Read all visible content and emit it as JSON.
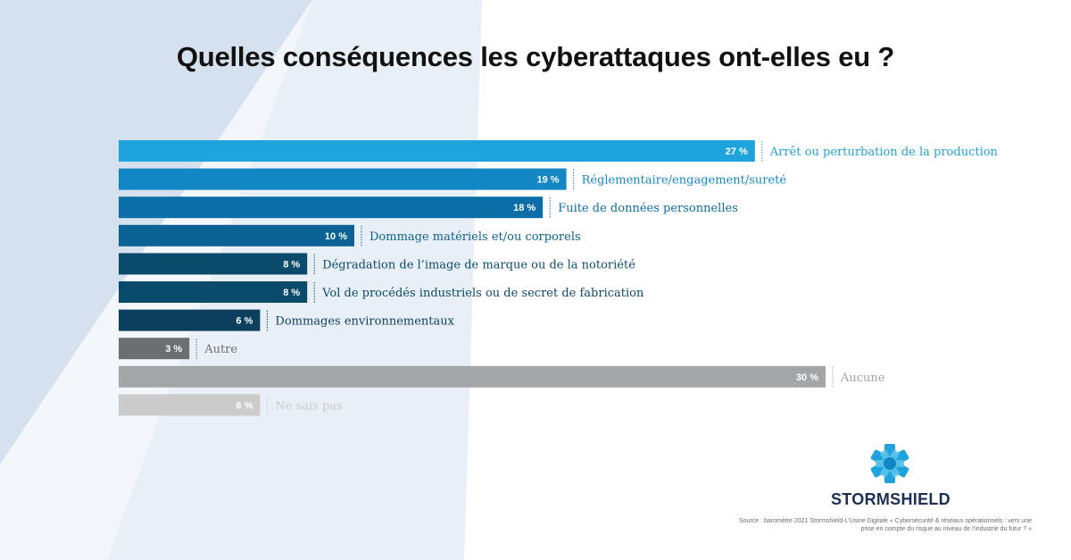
{
  "title": "Quelles conséquences les cyberattaques ont-elles eu ?",
  "chart_data": {
    "type": "bar",
    "orientation": "horizontal",
    "title": "Quelles conséquences les cyberattaques ont-elles eu ?",
    "xlabel": "",
    "ylabel": "",
    "xlim": [
      0,
      30
    ],
    "grid": false,
    "value_suffix": " %",
    "categories": [
      "Arrêt ou perturbation de la production",
      "Réglementaire/engagement/sureté",
      "Fuite de données personnelles",
      "Dommage matériels et/ou corporels",
      "Dégradation de l’image de marque ou de la notoriété",
      "Vol de procédés industriels ou de secret de fabrication",
      "Dommages environnementaux",
      "Autre",
      "Aucune",
      "Ne sais pas"
    ],
    "values": [
      27,
      19,
      18,
      10,
      8,
      8,
      6,
      3,
      30,
      6
    ],
    "bar_colors": [
      "#1ea3dc",
      "#1387c4",
      "#0c6ea6",
      "#0b6294",
      "#0a4a6b",
      "#0a4a6b",
      "#0b3f5d",
      "#6d6e70",
      "#a4a5a7",
      "#cbcbcc"
    ],
    "label_colors": [
      "#1ea3dc",
      "#1387c4",
      "#0c6ea6",
      "#0b6294",
      "#0a4a6b",
      "#0a4a6b",
      "#0b3f5d",
      "#6d6e70",
      "#a4a5a7",
      "#cbcbcc"
    ]
  },
  "brand": {
    "name": "STORMSHIELD",
    "logo_icon": "stormshield-star-icon"
  },
  "source": "Source : baromètre 2021 Stormshield-L’Usine Digitale « Cybersécurité & réseaux opérationnels : vers une prise en compte du risque au niveau de l’industrie du futur ? »",
  "colors": {
    "bg_triangle_dark": "#d5e1ef",
    "bg_triangle_light": "#eaf0f8",
    "brand_blue": "#1ea3dc",
    "brand_navy": "#1d2f55"
  }
}
